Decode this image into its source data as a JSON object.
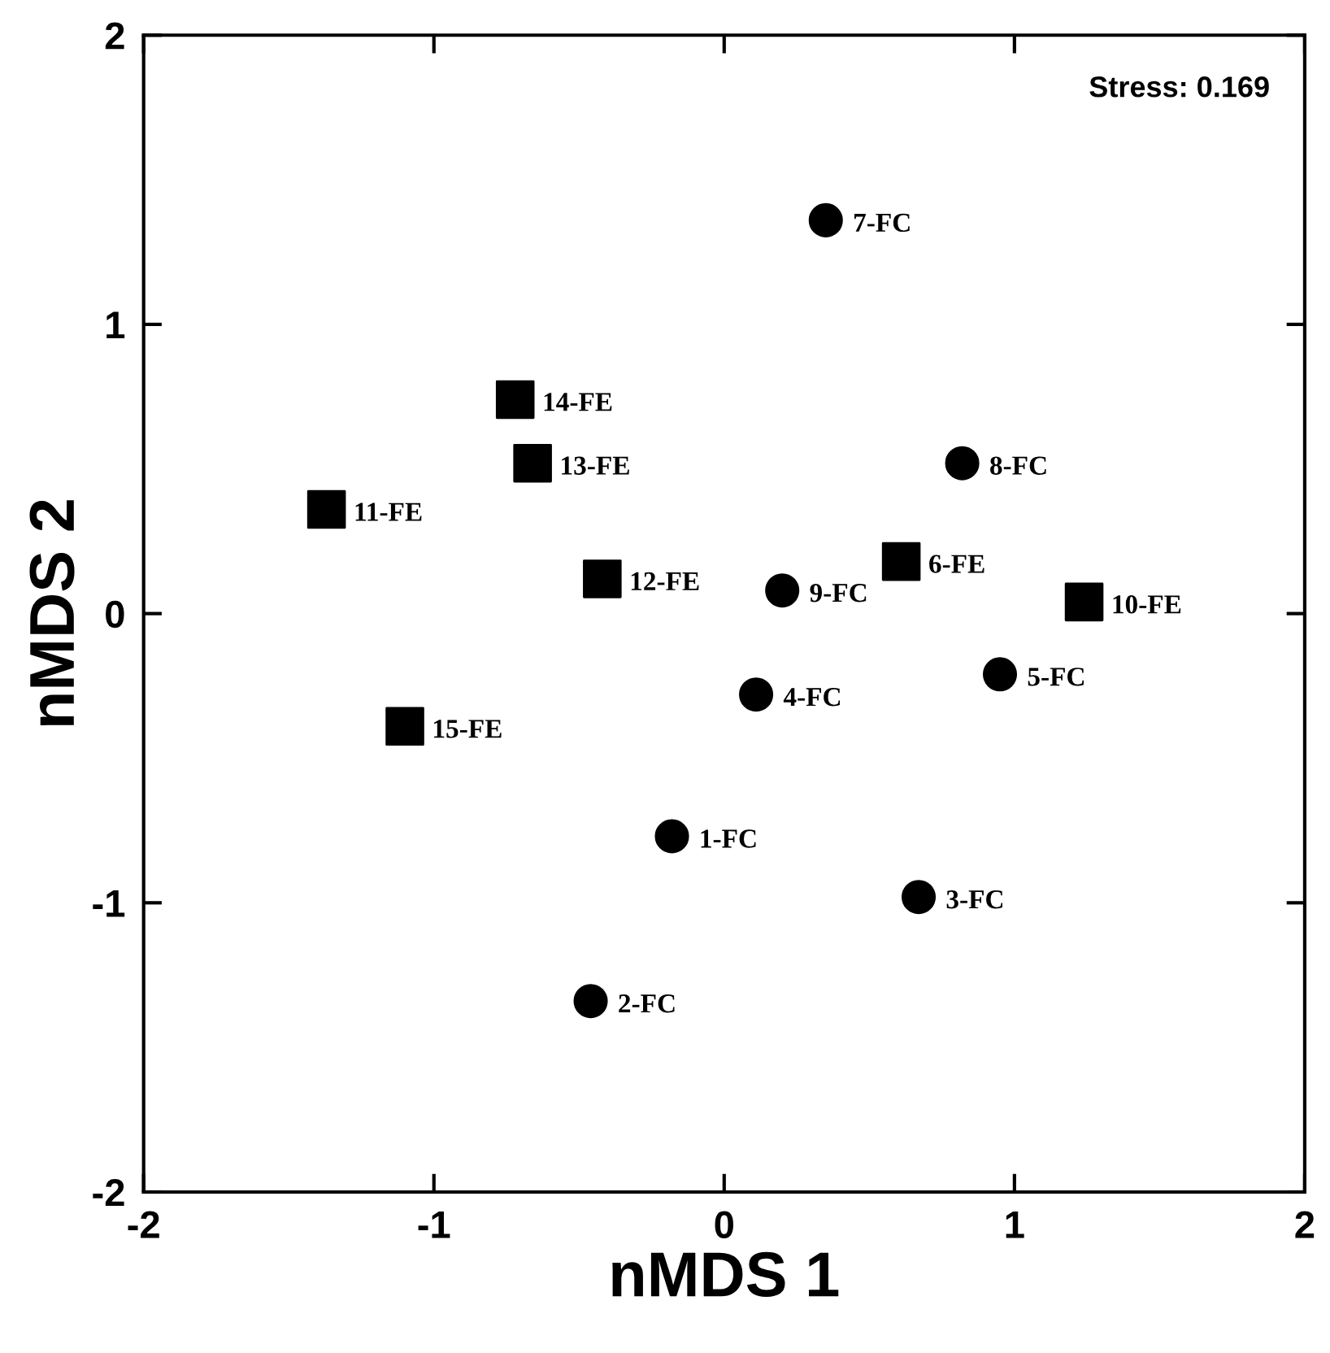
{
  "chart_data": {
    "type": "scatter",
    "xlabel": "nMDS 1",
    "ylabel": "nMDS 2",
    "xlim": [
      -2,
      2
    ],
    "ylim": [
      -2,
      2
    ],
    "xticks": [
      -2,
      -1,
      0,
      1,
      2
    ],
    "yticks": [
      -2,
      -1,
      0,
      1,
      2
    ],
    "grid": false,
    "legend": false,
    "series": [
      {
        "marker": "circle",
        "color": "#000000",
        "x": [
          -0.18,
          -0.46,
          0.67,
          0.11,
          0.95,
          0.35,
          0.82,
          0.2
        ],
        "values": [
          -0.77,
          -1.34,
          -0.98,
          -0.28,
          -0.21,
          1.36,
          0.52,
          0.08
        ]
      },
      {
        "marker": "square",
        "color": "#000000",
        "x": [
          0.61,
          1.24,
          -1.37,
          -0.42,
          -0.66,
          -0.72,
          -1.1
        ],
        "values": [
          0.18,
          0.04,
          0.36,
          0.12,
          0.52,
          0.74,
          -0.39
        ]
      }
    ],
    "annotations": [
      "Stress: 0.169",
      {
        "text": "1-FC",
        "x": -0.18,
        "y": -0.77
      },
      {
        "text": "2-FC",
        "x": -0.46,
        "y": -1.34
      },
      {
        "text": "3-FC",
        "x": 0.67,
        "y": -0.98
      },
      {
        "text": "4-FC",
        "x": 0.11,
        "y": -0.28
      },
      {
        "text": "5-FC",
        "x": 0.95,
        "y": -0.21
      },
      {
        "text": "6-FE",
        "x": 0.61,
        "y": 0.18
      },
      {
        "text": "7-FC",
        "x": 0.35,
        "y": 1.36
      },
      {
        "text": "8-FC",
        "x": 0.82,
        "y": 0.52
      },
      {
        "text": "9-FC",
        "x": 0.2,
        "y": 0.08
      },
      {
        "text": "10-FE",
        "x": 1.24,
        "y": 0.04
      },
      {
        "text": "11-FE",
        "x": -1.37,
        "y": 0.36
      },
      {
        "text": "12-FE",
        "x": -0.42,
        "y": 0.12
      },
      {
        "text": "13-FE",
        "x": -0.66,
        "y": 0.52
      },
      {
        "text": "14-FE",
        "x": -0.72,
        "y": 0.74
      },
      {
        "text": "15-FE",
        "x": -1.1,
        "y": -0.39
      }
    ]
  }
}
